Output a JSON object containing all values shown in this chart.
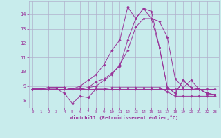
{
  "background_color": "#c8ecec",
  "grid_color": "#b0b0cc",
  "line_color": "#993399",
  "marker_color": "#993399",
  "xlabel": "Windchill (Refroidissement éolien,°C)",
  "xlabel_color": "#993399",
  "tick_color": "#993399",
  "xlim": [
    -0.5,
    23.5
  ],
  "ylim": [
    7.5,
    14.9
  ],
  "yticks": [
    8,
    9,
    10,
    11,
    12,
    13,
    14
  ],
  "xticks": [
    0,
    1,
    2,
    3,
    4,
    5,
    6,
    7,
    8,
    9,
    10,
    11,
    12,
    13,
    14,
    15,
    16,
    17,
    18,
    19,
    20,
    21,
    22,
    23
  ],
  "series": [
    {
      "x": [
        0,
        1,
        2,
        3,
        4,
        5,
        6,
        7,
        8,
        9,
        10,
        11,
        12,
        13,
        14,
        15,
        16,
        17,
        18,
        19,
        20,
        21,
        22,
        23
      ],
      "y": [
        8.8,
        8.8,
        8.8,
        8.8,
        8.8,
        8.8,
        8.8,
        8.8,
        8.8,
        8.8,
        8.8,
        8.8,
        8.8,
        8.8,
        8.8,
        8.8,
        8.8,
        8.8,
        8.8,
        8.8,
        8.8,
        8.8,
        8.8,
        8.8
      ]
    },
    {
      "x": [
        0,
        1,
        2,
        3,
        4,
        5,
        6,
        7,
        8,
        9,
        10,
        11,
        12,
        13,
        14,
        15,
        16,
        17,
        18,
        19,
        20,
        21,
        22,
        23
      ],
      "y": [
        8.8,
        8.8,
        8.8,
        8.8,
        8.5,
        7.8,
        8.3,
        8.2,
        8.8,
        8.8,
        8.9,
        8.9,
        8.9,
        8.9,
        8.9,
        8.9,
        8.9,
        8.6,
        8.3,
        8.3,
        8.3,
        8.3,
        8.3,
        8.3
      ]
    },
    {
      "x": [
        0,
        1,
        2,
        3,
        4,
        5,
        6,
        7,
        8,
        9,
        10,
        11,
        12,
        13,
        14,
        15,
        16,
        17,
        18,
        19,
        20,
        21,
        22,
        23
      ],
      "y": [
        8.8,
        8.8,
        8.9,
        8.9,
        8.9,
        8.8,
        8.8,
        8.9,
        9.3,
        9.5,
        9.9,
        10.4,
        12.2,
        13.7,
        14.4,
        13.7,
        11.7,
        8.9,
        8.5,
        9.4,
        8.9,
        8.8,
        8.5,
        8.4
      ]
    },
    {
      "x": [
        0,
        1,
        2,
        3,
        4,
        5,
        6,
        7,
        8,
        9,
        10,
        11,
        12,
        13,
        14,
        15,
        16,
        17,
        18,
        19,
        20,
        21,
        22,
        23
      ],
      "y": [
        8.8,
        8.8,
        8.9,
        8.9,
        8.9,
        8.8,
        9.0,
        9.4,
        9.8,
        10.5,
        11.5,
        12.2,
        14.5,
        13.7,
        14.4,
        14.2,
        11.7,
        8.9,
        8.5,
        9.4,
        8.9,
        8.8,
        8.5,
        8.4
      ]
    },
    {
      "x": [
        0,
        1,
        2,
        3,
        4,
        5,
        6,
        7,
        8,
        9,
        10,
        11,
        12,
        13,
        14,
        15,
        16,
        17,
        18,
        19,
        20,
        21,
        22,
        23
      ],
      "y": [
        8.8,
        8.8,
        8.9,
        8.9,
        8.9,
        8.8,
        8.8,
        8.9,
        9.0,
        9.4,
        9.8,
        10.5,
        11.5,
        13.1,
        13.7,
        13.7,
        13.5,
        12.4,
        9.5,
        8.9,
        9.4,
        8.8,
        8.5,
        8.4
      ]
    }
  ]
}
